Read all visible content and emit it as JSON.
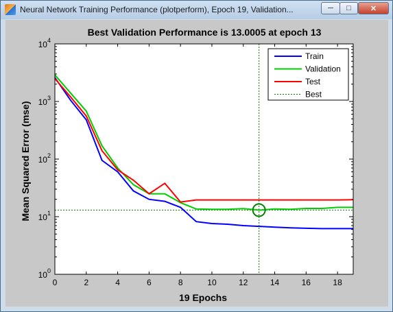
{
  "window": {
    "title": "Neural Network Training Performance (plotperform), Epoch 19, Validation...",
    "controls": {
      "minimize": "minimize",
      "maximize": "maximize",
      "close": "close"
    },
    "icons": {
      "app": "matlab-icon",
      "minimize": "minimize-icon",
      "maximize": "maximize-icon",
      "close": "close-icon"
    }
  },
  "chart_data": {
    "type": "line",
    "title": "Best Validation Performance is 13.0005 at epoch 13",
    "xlabel": "19 Epochs",
    "ylabel": "Mean Squared Error  (mse)",
    "yscale": "log",
    "xlim": [
      0,
      19
    ],
    "ylim": [
      1,
      10000
    ],
    "x_ticks": [
      0,
      2,
      4,
      6,
      8,
      10,
      12,
      14,
      16,
      18
    ],
    "y_ticks": [
      {
        "base": "10",
        "exp": "0",
        "value": 1
      },
      {
        "base": "10",
        "exp": "1",
        "value": 10
      },
      {
        "base": "10",
        "exp": "2",
        "value": 100
      },
      {
        "base": "10",
        "exp": "3",
        "value": 1000
      },
      {
        "base": "10",
        "exp": "4",
        "value": 10000
      }
    ],
    "x": [
      0,
      1,
      2,
      3,
      4,
      5,
      6,
      7,
      8,
      9,
      10,
      11,
      12,
      13,
      14,
      15,
      16,
      17,
      18,
      19
    ],
    "series": [
      {
        "name": "Train",
        "color": "#0000ff",
        "dash": "solid",
        "values": [
          2600,
          1050,
          480,
          95,
          60,
          28,
          20,
          18.5,
          14.5,
          8.2,
          7.6,
          7.4,
          7.0,
          6.8,
          6.6,
          6.4,
          6.3,
          6.2,
          6.2,
          6.2
        ]
      },
      {
        "name": "Validation",
        "color": "#00cc00",
        "dash": "solid",
        "values": [
          2900,
          1400,
          680,
          170,
          70,
          36,
          25,
          25,
          17.5,
          13.6,
          13.4,
          13.4,
          13.8,
          13.0,
          13.6,
          13.4,
          13.9,
          13.9,
          14.5,
          14.5
        ]
      },
      {
        "name": "Test",
        "color": "#ff0000",
        "dash": "solid",
        "values": [
          2500,
          1200,
          560,
          140,
          65,
          43,
          25,
          38,
          18,
          19.5,
          19.5,
          19.5,
          19.5,
          19.5,
          19.5,
          19.5,
          19.5,
          19.5,
          19.5,
          19.7
        ]
      },
      {
        "name": "Best",
        "color": "#008000",
        "dash": "dotted",
        "type": "reference",
        "x": 13,
        "y": 13.0005
      }
    ],
    "best_marker": {
      "x": 13,
      "y": 13.0005,
      "shape": "circle",
      "color": "#008000"
    },
    "legend_position": "top-right",
    "grid": false
  }
}
